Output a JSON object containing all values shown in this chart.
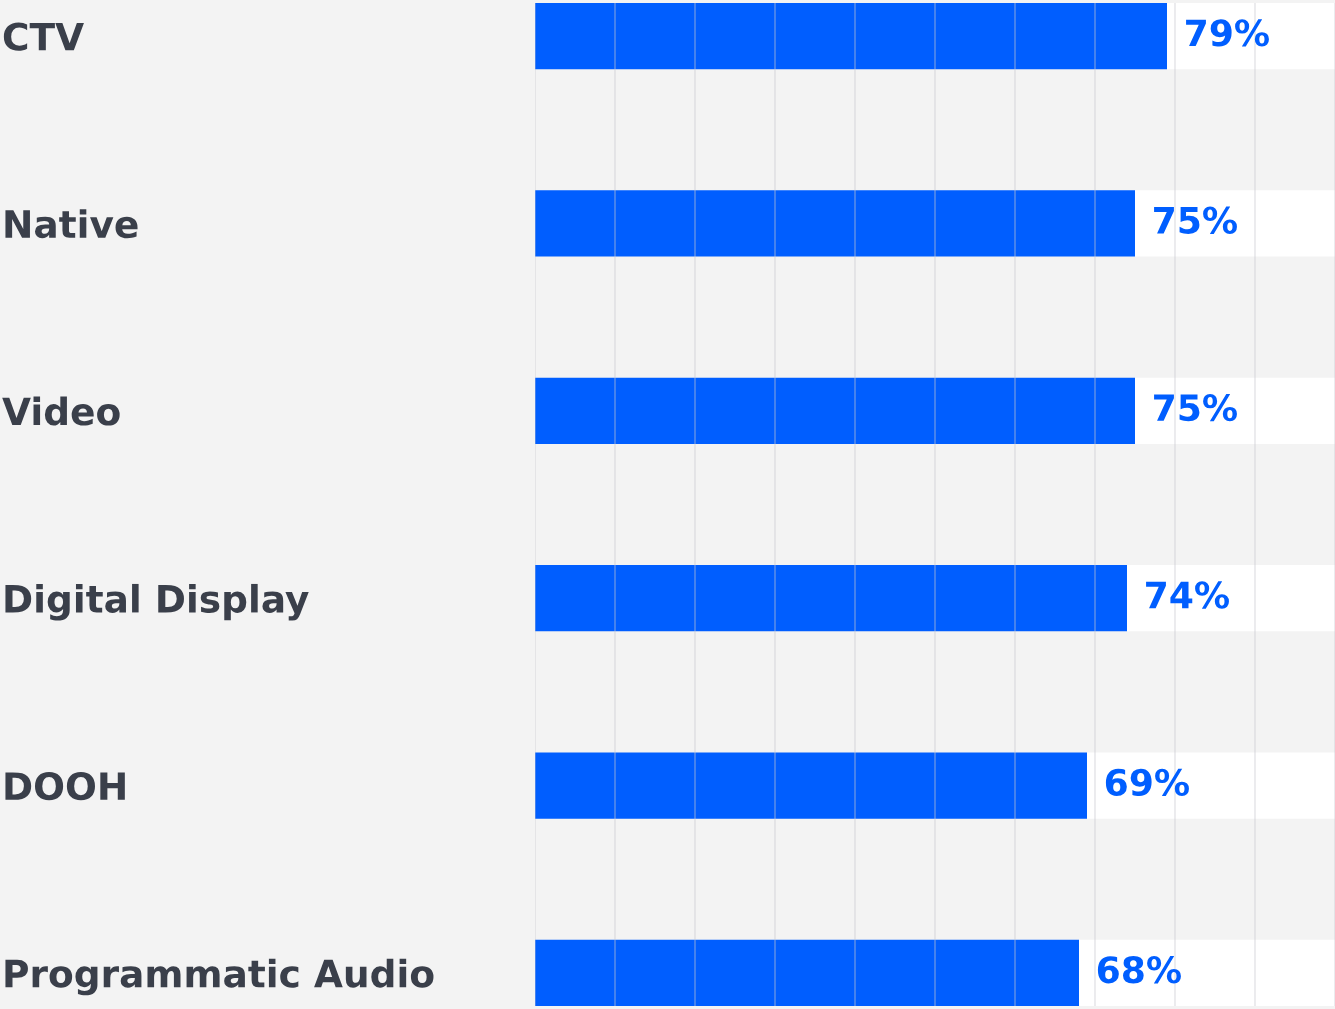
{
  "chart_data": {
    "type": "bar",
    "orientation": "horizontal",
    "categories": [
      "CTV",
      "Native",
      "Video",
      "Digital Display",
      "DOOH",
      "Programmatic Audio"
    ],
    "series": [
      {
        "color": "#005eff",
        "values": [
          79,
          75,
          75,
          74,
          69,
          68
        ],
        "value_labels": [
          "79%",
          "75%",
          "75%",
          "74%",
          "69%",
          "68%"
        ]
      },
      {
        "color": "#ffffff",
        "values": [
          21,
          25,
          25,
          26,
          31,
          32
        ]
      }
    ],
    "stacked": true,
    "xlim": [
      0,
      100
    ],
    "xticks": [
      {
        "value": 0,
        "label": null
      },
      {
        "value": 10,
        "label": null
      },
      {
        "value": 20,
        "label": null
      },
      {
        "value": 30,
        "label": null
      },
      {
        "value": 40,
        "label": null
      },
      {
        "value": 50,
        "label": null
      },
      {
        "value": 60,
        "label": null
      },
      {
        "value": 70,
        "label": null
      },
      {
        "value": 80,
        "label": null
      },
      {
        "value": 90,
        "label": null
      },
      {
        "value": 100,
        "label": null
      }
    ],
    "grid": "x",
    "tick_labels": "y"
  }
}
